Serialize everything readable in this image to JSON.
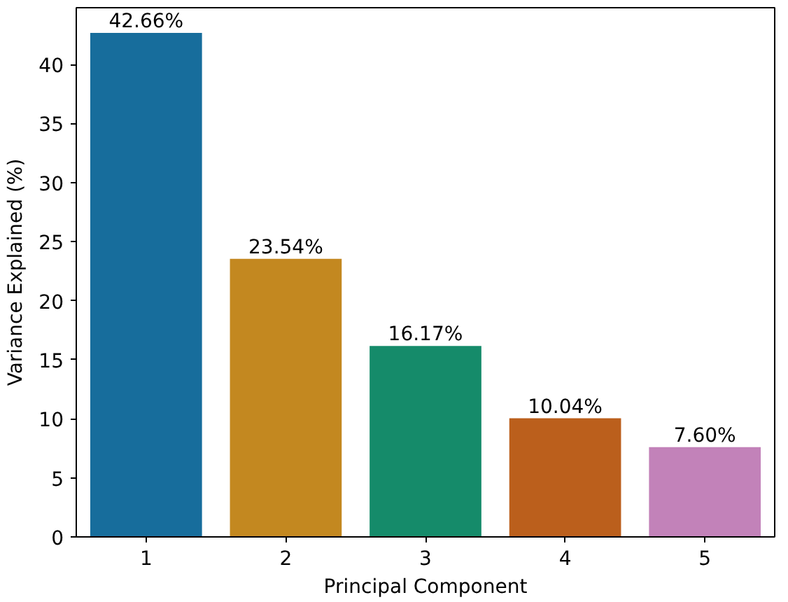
{
  "chart_data": {
    "type": "bar",
    "xlabel": "Principal Component",
    "ylabel": "Variance Explained (%)",
    "categories": [
      "1",
      "2",
      "3",
      "4",
      "5"
    ],
    "values": [
      42.66,
      23.54,
      16.17,
      10.04,
      7.6
    ],
    "colors": [
      "#176d9c",
      "#c38820",
      "#158b6a",
      "#bb5f1c",
      "#c282b9"
    ],
    "value_labels": [
      "42.66%",
      "23.54%",
      "16.17%",
      "10.04%",
      "7.60%"
    ],
    "ylim": [
      0,
      44.8
    ],
    "yticks": [
      0,
      5,
      10,
      15,
      20,
      25,
      30,
      35,
      40
    ],
    "grid": false
  }
}
